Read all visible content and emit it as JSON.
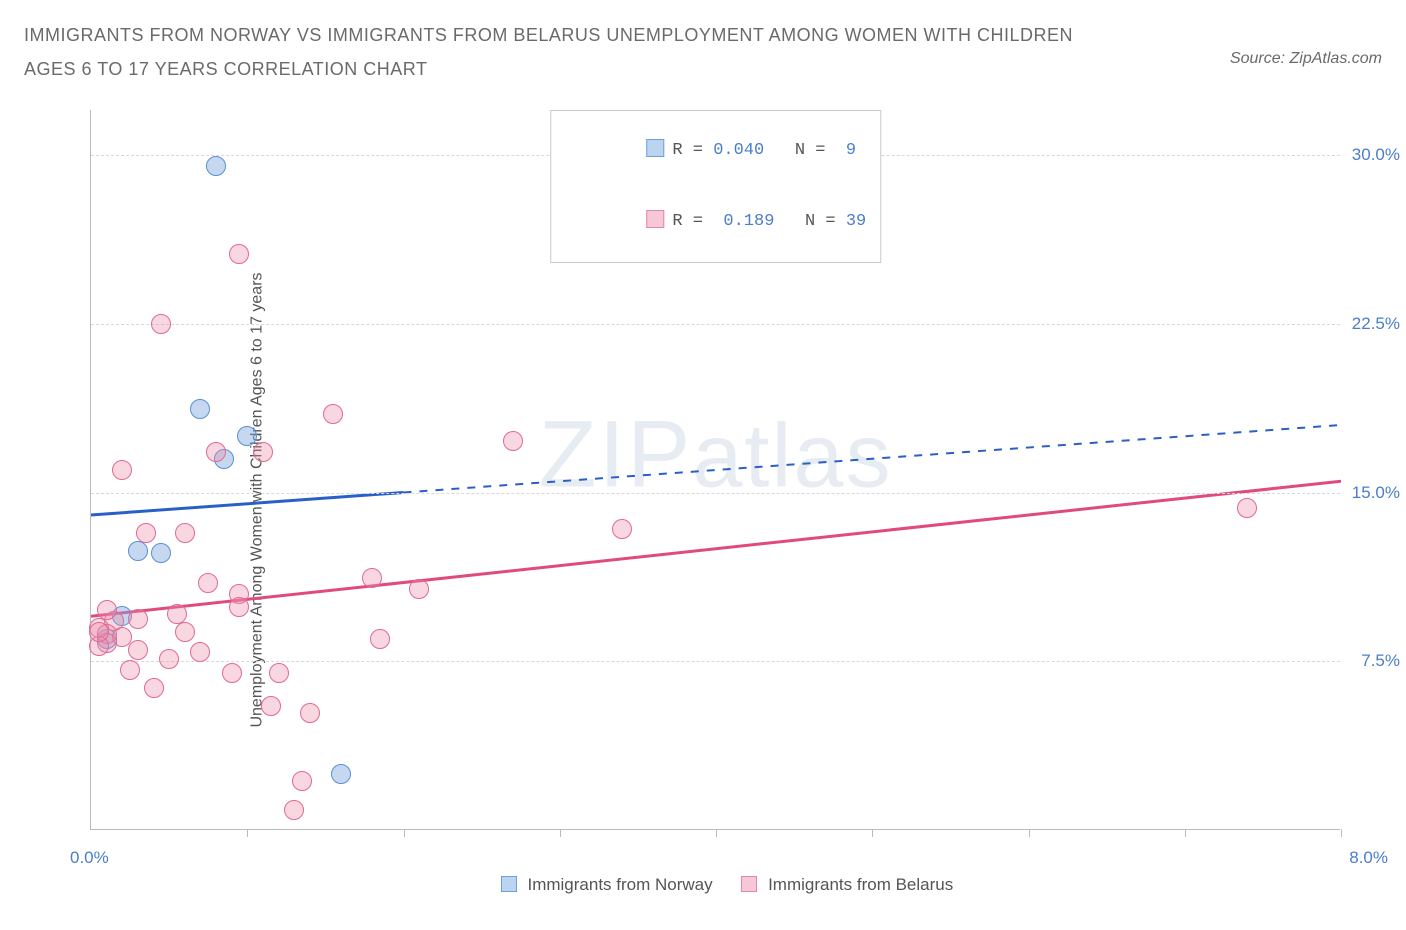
{
  "title": "IMMIGRANTS FROM NORWAY VS IMMIGRANTS FROM BELARUS UNEMPLOYMENT AMONG WOMEN WITH CHILDREN AGES 6 TO 17 YEARS CORRELATION CHART",
  "source_prefix": "Source: ",
  "source_name": "ZipAtlas.com",
  "ylabel": "Unemployment Among Women with Children Ages 6 to 17 years",
  "watermark": "ZIPatlas",
  "chart": {
    "type": "scatter",
    "xlim": [
      0.0,
      8.0
    ],
    "ylim": [
      0.0,
      32.0
    ],
    "x_tick_positions": [
      1.0,
      2.0,
      3.0,
      4.0,
      5.0,
      6.0,
      7.0,
      8.0
    ],
    "x_label_min": "0.0%",
    "x_label_max": "8.0%",
    "y_gridlines": [
      7.5,
      15.0,
      22.5,
      30.0
    ],
    "y_tick_labels": [
      "7.5%",
      "15.0%",
      "22.5%",
      "30.0%"
    ],
    "background_color": "#ffffff",
    "grid_color": "#d8d8d8",
    "axis_color": "#bbbbbb",
    "tick_label_color": "#4a7ec9",
    "marker_radius": 10,
    "marker_opacity": 0.55,
    "series": [
      {
        "name": "Immigrants from Norway",
        "short": "norway",
        "color_fill": "rgba(126,168,222,0.45)",
        "color_stroke": "#5a8fd6",
        "swatch_fill": "#bcd4f0",
        "swatch_border": "#6aa0de",
        "R": "0.040",
        "N": "9",
        "trend": {
          "slope": 0.5,
          "intercept": 14.0,
          "solid_xmax": 2.0,
          "line_color": "#2a5fc7",
          "line_width": 3
        },
        "points": [
          [
            0.8,
            29.5
          ],
          [
            0.7,
            18.7
          ],
          [
            1.0,
            17.5
          ],
          [
            0.85,
            16.5
          ],
          [
            0.3,
            12.4
          ],
          [
            0.45,
            12.3
          ],
          [
            0.2,
            9.5
          ],
          [
            0.1,
            8.5
          ],
          [
            1.6,
            2.5
          ]
        ]
      },
      {
        "name": "Immigrants from Belarus",
        "short": "belarus",
        "color_fill": "rgba(236,140,170,0.35)",
        "color_stroke": "#e06a94",
        "swatch_fill": "#f6c8d7",
        "swatch_border": "#e585a8",
        "R": "0.189",
        "N": "39",
        "trend": {
          "slope": 0.75,
          "intercept": 9.5,
          "solid_xmax": 8.0,
          "line_color": "#e04a7e",
          "line_width": 3
        },
        "points": [
          [
            0.95,
            25.6
          ],
          [
            0.45,
            22.5
          ],
          [
            1.55,
            18.5
          ],
          [
            2.7,
            17.3
          ],
          [
            0.8,
            16.8
          ],
          [
            1.1,
            16.8
          ],
          [
            7.4,
            14.3
          ],
          [
            3.4,
            13.4
          ],
          [
            0.2,
            16.0
          ],
          [
            1.8,
            11.2
          ],
          [
            2.1,
            10.7
          ],
          [
            0.75,
            11.0
          ],
          [
            0.95,
            10.5
          ],
          [
            0.6,
            13.2
          ],
          [
            0.95,
            9.9
          ],
          [
            0.55,
            9.6
          ],
          [
            0.3,
            9.4
          ],
          [
            0.15,
            9.3
          ],
          [
            0.05,
            9.0
          ],
          [
            0.1,
            8.7
          ],
          [
            0.2,
            8.6
          ],
          [
            0.1,
            8.3
          ],
          [
            0.05,
            8.2
          ],
          [
            0.3,
            8.0
          ],
          [
            0.35,
            13.2
          ],
          [
            1.85,
            8.5
          ],
          [
            0.5,
            7.6
          ],
          [
            0.9,
            7.0
          ],
          [
            0.25,
            7.1
          ],
          [
            0.4,
            6.3
          ],
          [
            1.2,
            7.0
          ],
          [
            1.15,
            5.5
          ],
          [
            1.4,
            5.2
          ],
          [
            1.35,
            2.2
          ],
          [
            1.3,
            0.9
          ],
          [
            0.05,
            8.8
          ],
          [
            0.7,
            7.9
          ],
          [
            0.1,
            9.8
          ],
          [
            0.6,
            8.8
          ]
        ]
      }
    ],
    "legend_bottom": {
      "items": [
        {
          "label": "Immigrants from Norway",
          "fill": "#bcd4f0",
          "border": "#6aa0de"
        },
        {
          "label": "Immigrants from Belarus",
          "fill": "#f6c8d7",
          "border": "#e585a8"
        }
      ]
    }
  }
}
